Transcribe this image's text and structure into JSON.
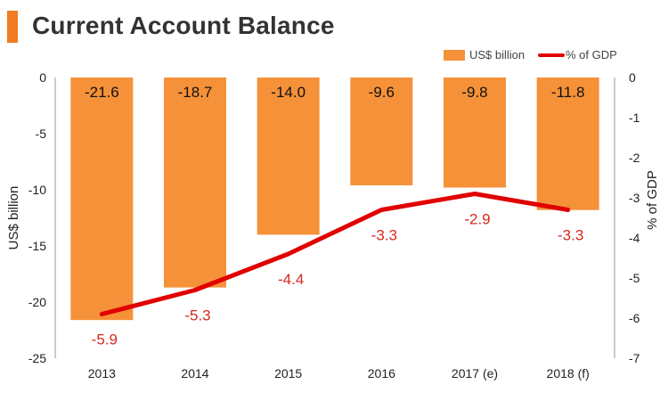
{
  "colors": {
    "accent": "#F07B22",
    "bar": "#F59139",
    "line": "#E00000",
    "axis": "#9a9a9a",
    "text": "#222222",
    "label_line": "#D42A1E"
  },
  "chart_data": {
    "type": "bar",
    "title": "Current Account Balance",
    "categories": [
      "2013",
      "2014",
      "2015",
      "2016",
      "2017 (e)",
      "2018 (f)"
    ],
    "series": [
      {
        "name": "US$ billion",
        "type": "bar",
        "axis": "left",
        "values": [
          -21.6,
          -18.7,
          -14.0,
          -9.6,
          -9.8,
          -11.8
        ],
        "labels": [
          "-21.6",
          "-18.7",
          "-14.0",
          "-9.6",
          "-9.8",
          "-11.8"
        ]
      },
      {
        "name": "% of GDP",
        "type": "line",
        "axis": "right",
        "values": [
          -5.9,
          -5.3,
          -4.4,
          -3.3,
          -2.9,
          -3.3
        ],
        "labels": [
          "-5.9",
          "-5.3",
          "-4.4",
          "-3.3",
          "-2.9",
          "-3.3"
        ]
      }
    ],
    "y_left": {
      "label": "US$ billion",
      "range": [
        -25,
        0
      ],
      "ticks": [
        "0",
        "-5",
        "-10",
        "-15",
        "-20",
        "-25"
      ]
    },
    "y_right": {
      "label": "% of GDP",
      "range": [
        -7,
        0
      ],
      "ticks": [
        "0",
        "-1",
        "-2",
        "-3",
        "-4",
        "-5",
        "-6",
        "-7"
      ]
    },
    "legend_position": "top-right",
    "grid": false
  }
}
